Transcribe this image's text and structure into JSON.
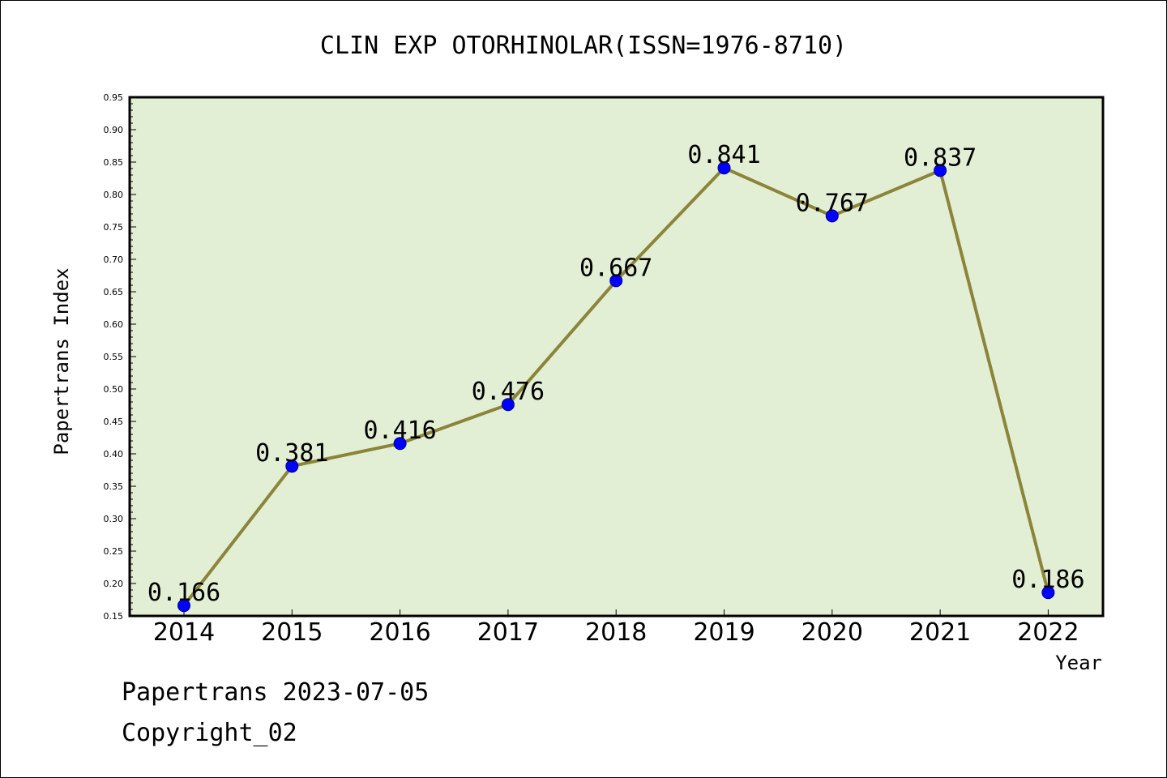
{
  "chart_data": {
    "type": "line",
    "title": "CLIN EXP OTORHINOLAR(ISSN=1976-8710)",
    "xlabel": "Year",
    "ylabel": "Papertrans Index",
    "categories": [
      "2014",
      "2015",
      "2016",
      "2017",
      "2018",
      "2019",
      "2020",
      "2021",
      "2022"
    ],
    "values": [
      0.166,
      0.381,
      0.416,
      0.476,
      0.667,
      0.841,
      0.767,
      0.837,
      0.186
    ],
    "value_labels": [
      "0.166",
      "0.381",
      "0.416",
      "0.476",
      "0.667",
      "0.841",
      "0.767",
      "0.837",
      "0.186"
    ],
    "ylim": [
      0.15,
      0.95
    ],
    "yticks": [
      "0.15",
      "0.20",
      "0.25",
      "0.30",
      "0.35",
      "0.40",
      "0.45",
      "0.50",
      "0.55",
      "0.60",
      "0.65",
      "0.70",
      "0.75",
      "0.80",
      "0.85",
      "0.90",
      "0.95"
    ],
    "grid": false,
    "colors": {
      "plot_background": "#e2efd5",
      "line": "#8b8439",
      "marker": "#0000ff"
    }
  },
  "footer": {
    "line1": "Papertrans 2023-07-05",
    "line2": "Copyright_02"
  }
}
